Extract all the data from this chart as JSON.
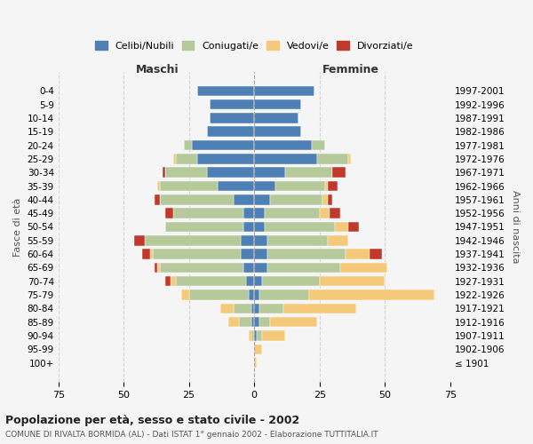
{
  "age_groups": [
    "100+",
    "95-99",
    "90-94",
    "85-89",
    "80-84",
    "75-79",
    "70-74",
    "65-69",
    "60-64",
    "55-59",
    "50-54",
    "45-49",
    "40-44",
    "35-39",
    "30-34",
    "25-29",
    "20-24",
    "15-19",
    "10-14",
    "5-9",
    "0-4"
  ],
  "birth_years": [
    "≤ 1901",
    "1902-1906",
    "1907-1911",
    "1912-1916",
    "1917-1921",
    "1922-1926",
    "1927-1931",
    "1932-1936",
    "1937-1941",
    "1942-1946",
    "1947-1951",
    "1952-1956",
    "1957-1961",
    "1962-1966",
    "1967-1971",
    "1972-1976",
    "1977-1981",
    "1982-1986",
    "1987-1991",
    "1992-1996",
    "1997-2001"
  ],
  "maschi": {
    "celibi": [
      0,
      0,
      0,
      1,
      1,
      2,
      3,
      4,
      5,
      5,
      4,
      4,
      8,
      14,
      18,
      22,
      24,
      18,
      17,
      17,
      22
    ],
    "coniugati": [
      0,
      0,
      1,
      5,
      7,
      23,
      27,
      32,
      34,
      37,
      30,
      27,
      28,
      22,
      16,
      8,
      3,
      0,
      0,
      0,
      0
    ],
    "vedovi": [
      0,
      0,
      1,
      4,
      5,
      3,
      2,
      1,
      1,
      0,
      0,
      0,
      0,
      1,
      0,
      1,
      0,
      0,
      0,
      0,
      0
    ],
    "divorziati": [
      0,
      0,
      0,
      0,
      0,
      0,
      2,
      1,
      3,
      4,
      0,
      3,
      2,
      0,
      1,
      0,
      0,
      0,
      0,
      0,
      0
    ]
  },
  "femmine": {
    "nubili": [
      0,
      0,
      1,
      2,
      2,
      2,
      3,
      5,
      5,
      5,
      4,
      4,
      6,
      8,
      12,
      24,
      22,
      18,
      17,
      18,
      23
    ],
    "coniugate": [
      0,
      0,
      2,
      4,
      9,
      19,
      22,
      28,
      30,
      23,
      27,
      21,
      20,
      19,
      18,
      12,
      5,
      0,
      0,
      0,
      0
    ],
    "vedove": [
      1,
      3,
      9,
      18,
      28,
      48,
      25,
      18,
      9,
      8,
      5,
      4,
      2,
      1,
      0,
      1,
      0,
      0,
      0,
      0,
      0
    ],
    "divorziate": [
      0,
      0,
      0,
      0,
      0,
      0,
      0,
      0,
      5,
      0,
      4,
      4,
      2,
      4,
      5,
      0,
      0,
      0,
      0,
      0,
      0
    ]
  },
  "colors": {
    "celibi": "#4e7fb5",
    "coniugati": "#b5c99a",
    "vedovi": "#f5c97a",
    "divorziati": "#c0392b"
  },
  "title": "Popolazione per età, sesso e stato civile - 2002",
  "subtitle": "COMUNE DI RIVALTA BORMIDA (AL) - Dati ISTAT 1° gennaio 2002 - Elaborazione TUTTITALIA.IT",
  "xlabel_left": "Maschi",
  "xlabel_right": "Femmine",
  "ylabel_left": "Fasce di età",
  "ylabel_right": "Anni di nascita",
  "xlim": 75,
  "bg_color": "#f5f5f5",
  "legend_labels": [
    "Celibi/Nubili",
    "Coniugati/e",
    "Vedovi/e",
    "Divorziati/e"
  ]
}
